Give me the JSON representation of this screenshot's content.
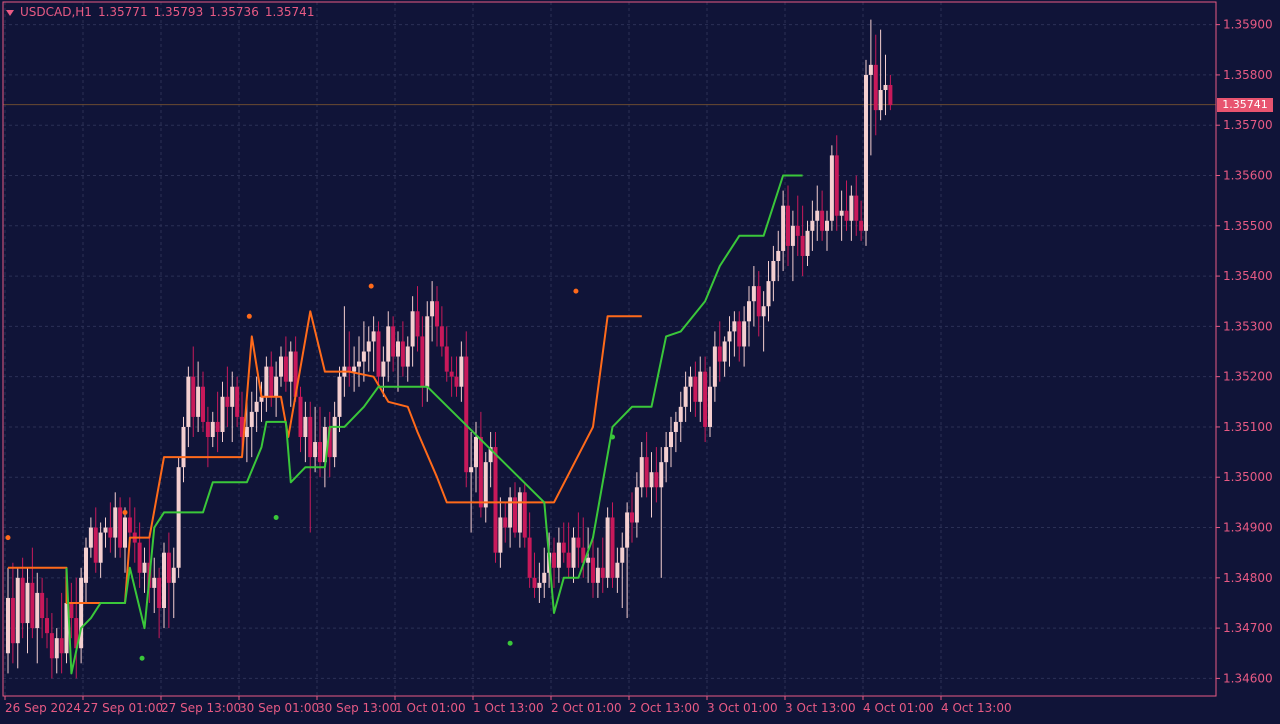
{
  "header": {
    "symbol": "USDCAD,H1",
    "open": "1.35771",
    "high": "1.35793",
    "low": "1.35736",
    "close": "1.35741"
  },
  "current_price_label": "1.35741",
  "colors": {
    "background": "#101438",
    "grid": "#2b3055",
    "axis": "#e85a84",
    "axis_text": "#e85a84",
    "bull_candle": "#f4cfd0",
    "bear_candle": "#c8195a",
    "upper_line": "#ff6a1a",
    "lower_line": "#3ac73a",
    "price_tag": "#e8546f"
  },
  "chart_data": {
    "type": "candlestick",
    "title": "",
    "y_ticks": [
      "1.34600",
      "1.34700",
      "1.34800",
      "1.34900",
      "1.35000",
      "1.35100",
      "1.35200",
      "1.35300",
      "1.35400",
      "1.35500",
      "1.35600",
      "1.35700",
      "1.35800",
      "1.35900"
    ],
    "ylim": [
      1.34565,
      1.35945
    ],
    "x_ticks": [
      "26 Sep 2024",
      "27 Sep 01:00",
      "27 Sep 13:00",
      "30 Sep 01:00",
      "30 Sep 13:00",
      "1 Oct 01:00",
      "1 Oct 13:00",
      "2 Oct 01:00",
      "2 Oct 13:00",
      "3 Oct 01:00",
      "3 Oct 13:00",
      "4 Oct 01:00",
      "4 Oct 13:00"
    ],
    "x_tick_bar_index": [
      0,
      16,
      32,
      48,
      64,
      80,
      96,
      112,
      128,
      144,
      160,
      176,
      192
    ],
    "current_price": 1.35741,
    "grid": true,
    "candles": [
      [
        1.3465,
        1.3482,
        1.3461,
        1.3476
      ],
      [
        1.3476,
        1.3483,
        1.3463,
        1.3467
      ],
      [
        1.3467,
        1.3482,
        1.3462,
        1.348
      ],
      [
        1.348,
        1.3484,
        1.3468,
        1.3471
      ],
      [
        1.3471,
        1.3482,
        1.3465,
        1.3479
      ],
      [
        1.3479,
        1.3486,
        1.3468,
        1.347
      ],
      [
        1.347,
        1.3481,
        1.3463,
        1.3477
      ],
      [
        1.3477,
        1.348,
        1.3468,
        1.3472
      ],
      [
        1.3472,
        1.3476,
        1.3466,
        1.3469
      ],
      [
        1.3469,
        1.3473,
        1.346,
        1.3464
      ],
      [
        1.3464,
        1.347,
        1.3461,
        1.3468
      ],
      [
        1.3468,
        1.3477,
        1.3461,
        1.3465
      ],
      [
        1.3465,
        1.3478,
        1.3463,
        1.3475
      ],
      [
        1.3475,
        1.3479,
        1.3468,
        1.3472
      ],
      [
        1.3472,
        1.348,
        1.346,
        1.3466
      ],
      [
        1.3466,
        1.3482,
        1.3463,
        1.348
      ],
      [
        1.3479,
        1.3488,
        1.3475,
        1.3486
      ],
      [
        1.3486,
        1.3492,
        1.3484,
        1.349
      ],
      [
        1.349,
        1.3494,
        1.3481,
        1.3483
      ],
      [
        1.3483,
        1.3491,
        1.348,
        1.3489
      ],
      [
        1.3489,
        1.3492,
        1.3486,
        1.349
      ],
      [
        1.349,
        1.3495,
        1.3485,
        1.3488
      ],
      [
        1.3488,
        1.3497,
        1.3484,
        1.3494
      ],
      [
        1.3494,
        1.3496,
        1.3484,
        1.3486
      ],
      [
        1.3486,
        1.3494,
        1.3481,
        1.3492
      ],
      [
        1.3492,
        1.3496,
        1.3487,
        1.3489
      ],
      [
        1.3489,
        1.3494,
        1.3483,
        1.3487
      ],
      [
        1.3487,
        1.3491,
        1.3478,
        1.3481
      ],
      [
        1.3481,
        1.3486,
        1.3477,
        1.3483
      ],
      [
        1.3483,
        1.3489,
        1.3475,
        1.3478
      ],
      [
        1.3478,
        1.3484,
        1.3473,
        1.348
      ],
      [
        1.348,
        1.3482,
        1.3468,
        1.3474
      ],
      [
        1.3474,
        1.3487,
        1.347,
        1.3485
      ],
      [
        1.3485,
        1.3489,
        1.347,
        1.3479
      ],
      [
        1.3479,
        1.3486,
        1.3472,
        1.3482
      ],
      [
        1.3482,
        1.3504,
        1.348,
        1.3502
      ],
      [
        1.3502,
        1.3512,
        1.3499,
        1.351
      ],
      [
        1.351,
        1.3522,
        1.3506,
        1.352
      ],
      [
        1.352,
        1.3526,
        1.3508,
        1.3512
      ],
      [
        1.3512,
        1.3523,
        1.3509,
        1.3518
      ],
      [
        1.3518,
        1.3521,
        1.3509,
        1.3511
      ],
      [
        1.3511,
        1.3514,
        1.3502,
        1.3508
      ],
      [
        1.3508,
        1.3513,
        1.3506,
        1.3511
      ],
      [
        1.3511,
        1.3517,
        1.3505,
        1.3509
      ],
      [
        1.3509,
        1.3519,
        1.3507,
        1.3516
      ],
      [
        1.3516,
        1.3522,
        1.351,
        1.3514
      ],
      [
        1.3514,
        1.3521,
        1.3507,
        1.3518
      ],
      [
        1.3518,
        1.352,
        1.351,
        1.3512
      ],
      [
        1.3512,
        1.3517,
        1.3505,
        1.3508
      ],
      [
        1.3508,
        1.3515,
        1.3503,
        1.351
      ],
      [
        1.351,
        1.3517,
        1.3504,
        1.3513
      ],
      [
        1.3513,
        1.352,
        1.3509,
        1.3515
      ],
      [
        1.3515,
        1.3519,
        1.3511,
        1.3516
      ],
      [
        1.3516,
        1.3524,
        1.3513,
        1.3522
      ],
      [
        1.3522,
        1.3525,
        1.3514,
        1.3516
      ],
      [
        1.3516,
        1.3523,
        1.3512,
        1.352
      ],
      [
        1.352,
        1.3526,
        1.3518,
        1.3524
      ],
      [
        1.3524,
        1.3528,
        1.3517,
        1.3519
      ],
      [
        1.3519,
        1.3527,
        1.3514,
        1.3525
      ],
      [
        1.3525,
        1.3528,
        1.3515,
        1.3516
      ],
      [
        1.3516,
        1.3518,
        1.3505,
        1.3508
      ],
      [
        1.3508,
        1.3515,
        1.3503,
        1.3512
      ],
      [
        1.3512,
        1.3515,
        1.3489,
        1.3504
      ],
      [
        1.3504,
        1.3514,
        1.3501,
        1.3507
      ],
      [
        1.3507,
        1.3514,
        1.35,
        1.3503
      ],
      [
        1.3503,
        1.3512,
        1.3498,
        1.351
      ],
      [
        1.351,
        1.3513,
        1.35,
        1.3504
      ],
      [
        1.3504,
        1.3515,
        1.3502,
        1.3512
      ],
      [
        1.3512,
        1.3522,
        1.3509,
        1.352
      ],
      [
        1.352,
        1.3534,
        1.3516,
        1.3522
      ],
      [
        1.3522,
        1.3529,
        1.3518,
        1.3521
      ],
      [
        1.3521,
        1.3526,
        1.3517,
        1.3522
      ],
      [
        1.3522,
        1.3528,
        1.3518,
        1.3523
      ],
      [
        1.3523,
        1.3531,
        1.3519,
        1.3525
      ],
      [
        1.3525,
        1.353,
        1.3521,
        1.3527
      ],
      [
        1.3527,
        1.3532,
        1.3521,
        1.3529
      ],
      [
        1.3529,
        1.3531,
        1.3518,
        1.352
      ],
      [
        1.352,
        1.3526,
        1.3516,
        1.3523
      ],
      [
        1.3523,
        1.3533,
        1.3519,
        1.353
      ],
      [
        1.353,
        1.3532,
        1.3521,
        1.3524
      ],
      [
        1.3524,
        1.3529,
        1.3517,
        1.3527
      ],
      [
        1.3527,
        1.3531,
        1.352,
        1.3522
      ],
      [
        1.3522,
        1.3528,
        1.3519,
        1.3526
      ],
      [
        1.3526,
        1.3536,
        1.3522,
        1.3533
      ],
      [
        1.3533,
        1.3538,
        1.3525,
        1.3528
      ],
      [
        1.3528,
        1.3532,
        1.3514,
        1.3518
      ],
      [
        1.3518,
        1.3535,
        1.3515,
        1.3532
      ],
      [
        1.3532,
        1.3539,
        1.3527,
        1.3535
      ],
      [
        1.3535,
        1.3538,
        1.3526,
        1.353
      ],
      [
        1.353,
        1.3534,
        1.3524,
        1.3526
      ],
      [
        1.3526,
        1.353,
        1.3519,
        1.3521
      ],
      [
        1.3521,
        1.3524,
        1.3516,
        1.352
      ],
      [
        1.352,
        1.3524,
        1.3516,
        1.3518
      ],
      [
        1.3518,
        1.3527,
        1.3515,
        1.3524
      ],
      [
        1.3524,
        1.3529,
        1.3498,
        1.3501
      ],
      [
        1.3501,
        1.3509,
        1.3489,
        1.3502
      ],
      [
        1.3502,
        1.3511,
        1.3497,
        1.3508
      ],
      [
        1.3508,
        1.3513,
        1.3492,
        1.3494
      ],
      [
        1.3494,
        1.3505,
        1.3491,
        1.3503
      ],
      [
        1.3503,
        1.3509,
        1.3498,
        1.3506
      ],
      [
        1.3506,
        1.3509,
        1.3483,
        1.3485
      ],
      [
        1.3485,
        1.3496,
        1.3482,
        1.3492
      ],
      [
        1.3492,
        1.3495,
        1.3487,
        1.349
      ],
      [
        1.349,
        1.3498,
        1.3486,
        1.3496
      ],
      [
        1.3496,
        1.3499,
        1.3488,
        1.3489
      ],
      [
        1.3489,
        1.3498,
        1.3486,
        1.3497
      ],
      [
        1.3497,
        1.3499,
        1.3486,
        1.3488
      ],
      [
        1.3488,
        1.3493,
        1.3478,
        1.348
      ],
      [
        1.348,
        1.3485,
        1.3476,
        1.3478
      ],
      [
        1.3478,
        1.3483,
        1.3475,
        1.3479
      ],
      [
        1.3479,
        1.3486,
        1.3476,
        1.3481
      ],
      [
        1.3481,
        1.3489,
        1.3478,
        1.3485
      ],
      [
        1.3485,
        1.3488,
        1.3478,
        1.3482
      ],
      [
        1.3482,
        1.349,
        1.3479,
        1.3487
      ],
      [
        1.3487,
        1.3491,
        1.3483,
        1.3485
      ],
      [
        1.3485,
        1.3491,
        1.348,
        1.3482
      ],
      [
        1.3482,
        1.349,
        1.3479,
        1.3488
      ],
      [
        1.3488,
        1.3493,
        1.3482,
        1.3486
      ],
      [
        1.3486,
        1.3492,
        1.348,
        1.3483
      ],
      [
        1.3483,
        1.349,
        1.3479,
        1.3484
      ],
      [
        1.3484,
        1.3488,
        1.3476,
        1.3479
      ],
      [
        1.3479,
        1.3486,
        1.3476,
        1.3482
      ],
      [
        1.3482,
        1.3488,
        1.3477,
        1.348
      ],
      [
        1.348,
        1.3494,
        1.3478,
        1.3492
      ],
      [
        1.3492,
        1.3495,
        1.3478,
        1.348
      ],
      [
        1.348,
        1.3486,
        1.3477,
        1.3483
      ],
      [
        1.3483,
        1.3489,
        1.3474,
        1.3486
      ],
      [
        1.3486,
        1.3495,
        1.3472,
        1.3493
      ],
      [
        1.3493,
        1.3497,
        1.3487,
        1.3491
      ],
      [
        1.3491,
        1.3501,
        1.3488,
        1.3498
      ],
      [
        1.3498,
        1.3507,
        1.3496,
        1.3504
      ],
      [
        1.3504,
        1.3509,
        1.3496,
        1.3498
      ],
      [
        1.3498,
        1.3505,
        1.3492,
        1.3501
      ],
      [
        1.3501,
        1.3506,
        1.3495,
        1.3498
      ],
      [
        1.3498,
        1.3506,
        1.348,
        1.3503
      ],
      [
        1.3503,
        1.3509,
        1.3499,
        1.3506
      ],
      [
        1.3506,
        1.3512,
        1.3502,
        1.3509
      ],
      [
        1.3509,
        1.3513,
        1.3505,
        1.3511
      ],
      [
        1.3511,
        1.3517,
        1.3507,
        1.3514
      ],
      [
        1.3514,
        1.3521,
        1.3511,
        1.3518
      ],
      [
        1.3518,
        1.3522,
        1.3513,
        1.352
      ],
      [
        1.352,
        1.3523,
        1.3512,
        1.3515
      ],
      [
        1.3515,
        1.3524,
        1.3511,
        1.3521
      ],
      [
        1.3521,
        1.3524,
        1.3507,
        1.351
      ],
      [
        1.351,
        1.3522,
        1.3508,
        1.3518
      ],
      [
        1.3518,
        1.3529,
        1.3515,
        1.3526
      ],
      [
        1.3526,
        1.3531,
        1.3519,
        1.3523
      ],
      [
        1.3523,
        1.3528,
        1.352,
        1.3527
      ],
      [
        1.3527,
        1.3532,
        1.3522,
        1.3529
      ],
      [
        1.3529,
        1.3533,
        1.3524,
        1.3531
      ],
      [
        1.3531,
        1.3533,
        1.3523,
        1.3526
      ],
      [
        1.3526,
        1.3534,
        1.3522,
        1.3531
      ],
      [
        1.3531,
        1.3538,
        1.3526,
        1.3535
      ],
      [
        1.3535,
        1.3542,
        1.353,
        1.3538
      ],
      [
        1.3538,
        1.3541,
        1.3528,
        1.3532
      ],
      [
        1.3532,
        1.3537,
        1.3525,
        1.3534
      ],
      [
        1.3534,
        1.3543,
        1.3531,
        1.3539
      ],
      [
        1.3539,
        1.3546,
        1.3535,
        1.3543
      ],
      [
        1.3543,
        1.3549,
        1.3539,
        1.3545
      ],
      [
        1.3545,
        1.3557,
        1.3541,
        1.3554
      ],
      [
        1.3554,
        1.3558,
        1.3542,
        1.3546
      ],
      [
        1.3546,
        1.3553,
        1.3539,
        1.355
      ],
      [
        1.355,
        1.3556,
        1.3544,
        1.3548
      ],
      [
        1.3548,
        1.3554,
        1.354,
        1.3544
      ],
      [
        1.3544,
        1.3551,
        1.3542,
        1.3549
      ],
      [
        1.3549,
        1.3555,
        1.3545,
        1.3551
      ],
      [
        1.3551,
        1.3558,
        1.3547,
        1.3553
      ],
      [
        1.3553,
        1.3557,
        1.3547,
        1.3549
      ],
      [
        1.3549,
        1.3553,
        1.3545,
        1.3551
      ],
      [
        1.3551,
        1.3566,
        1.3549,
        1.3564
      ],
      [
        1.3564,
        1.3568,
        1.3549,
        1.3552
      ],
      [
        1.3552,
        1.3557,
        1.3547,
        1.3553
      ],
      [
        1.3553,
        1.3559,
        1.3549,
        1.3551
      ],
      [
        1.3551,
        1.3558,
        1.3547,
        1.3556
      ],
      [
        1.3556,
        1.356,
        1.3548,
        1.3551
      ],
      [
        1.3551,
        1.3555,
        1.3547,
        1.3549
      ],
      [
        1.3549,
        1.3583,
        1.3546,
        1.358
      ],
      [
        1.358,
        1.3591,
        1.3564,
        1.3582
      ],
      [
        1.3582,
        1.3588,
        1.3568,
        1.3573
      ],
      [
        1.3573,
        1.3589,
        1.3571,
        1.3577
      ],
      [
        1.3577,
        1.3584,
        1.3572,
        1.3578
      ],
      [
        1.3578,
        1.358,
        1.3573,
        1.3574
      ]
    ],
    "upper_line": [
      [
        0,
        1.3482
      ],
      [
        24,
        1.3482
      ],
      [
        24,
        1.3475
      ],
      [
        48,
        1.3475
      ],
      [
        50,
        1.3488
      ],
      [
        58,
        1.3488
      ],
      [
        64,
        1.3504
      ],
      [
        72,
        1.3504
      ],
      [
        76,
        1.3504
      ],
      [
        96,
        1.3504
      ],
      [
        100,
        1.3528
      ],
      [
        104,
        1.3516
      ],
      [
        108,
        1.3516
      ],
      [
        112,
        1.3516
      ],
      [
        115,
        1.3508
      ],
      [
        124,
        1.3533
      ],
      [
        130,
        1.3521
      ],
      [
        140,
        1.3521
      ],
      [
        150,
        1.352
      ],
      [
        156,
        1.3515
      ],
      [
        164,
        1.3514
      ],
      [
        168,
        1.3509
      ],
      [
        176,
        1.35
      ],
      [
        180,
        1.3495
      ],
      [
        198,
        1.3495
      ],
      [
        218,
        1.3495
      ],
      [
        222,
        1.3495
      ],
      [
        224,
        1.3495
      ],
      [
        240,
        1.351
      ],
      [
        246,
        1.3532
      ],
      [
        260,
        1.3532
      ]
    ],
    "lower_line": [
      [
        24,
        1.3482
      ],
      [
        26,
        1.3461
      ],
      [
        30,
        1.347
      ],
      [
        34,
        1.3472
      ],
      [
        38,
        1.3475
      ],
      [
        48,
        1.3475
      ],
      [
        50,
        1.3482
      ],
      [
        56,
        1.347
      ],
      [
        60,
        1.349
      ],
      [
        64,
        1.3493
      ],
      [
        80,
        1.3493
      ],
      [
        84,
        1.3499
      ],
      [
        98,
        1.3499
      ],
      [
        104,
        1.3506
      ],
      [
        106,
        1.3511
      ],
      [
        110,
        1.3511
      ],
      [
        114,
        1.3511
      ],
      [
        116,
        1.3499
      ],
      [
        122,
        1.3502
      ],
      [
        130,
        1.3502
      ],
      [
        132,
        1.351
      ],
      [
        138,
        1.351
      ],
      [
        146,
        1.3514
      ],
      [
        152,
        1.3518
      ],
      [
        160,
        1.3518
      ],
      [
        164,
        1.3518
      ],
      [
        172,
        1.3518
      ],
      [
        220,
        1.3495
      ],
      [
        224,
        1.3473
      ],
      [
        228,
        1.348
      ],
      [
        234,
        1.348
      ],
      [
        240,
        1.3488
      ],
      [
        248,
        1.351
      ],
      [
        256,
        1.3514
      ],
      [
        264,
        1.3514
      ],
      [
        270,
        1.3528
      ],
      [
        276,
        1.3529
      ],
      [
        286,
        1.3535
      ],
      [
        292,
        1.3542
      ],
      [
        300,
        1.3548
      ],
      [
        310,
        1.3548
      ],
      [
        318,
        1.356
      ],
      [
        326,
        1.356
      ]
    ],
    "upper_dots": [
      [
        0,
        1.3488
      ],
      [
        48,
        1.3493
      ],
      [
        99,
        1.3532
      ],
      [
        149,
        1.3538
      ],
      [
        233,
        1.3537
      ]
    ],
    "lower_dots": [
      [
        55,
        1.3464
      ],
      [
        110,
        1.3492
      ],
      [
        206,
        1.3467
      ],
      [
        248,
        1.3508
      ]
    ]
  }
}
